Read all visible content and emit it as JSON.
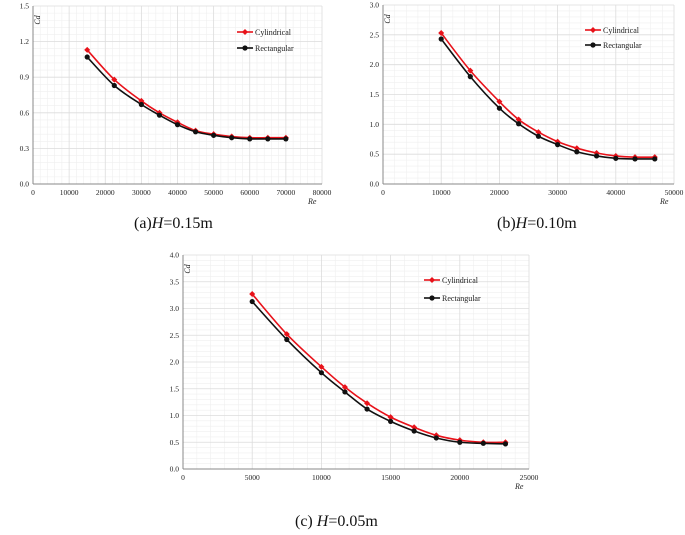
{
  "colors": {
    "cylindrical": "#e8121a",
    "rectangular": "#111111",
    "grid": "#dcdcdc",
    "axis": "#888888"
  },
  "chart_data": [
    {
      "type": "line",
      "id": "a",
      "caption_prefix": "(a)",
      "caption_var": "H",
      "caption_value": "=0.15m",
      "xlabel": "Re",
      "ylabel": "Cd",
      "xlim": [
        0,
        80000
      ],
      "ylim": [
        0,
        1.5
      ],
      "xticks": [
        0,
        10000,
        20000,
        30000,
        40000,
        50000,
        60000,
        70000,
        80000
      ],
      "yticks": [
        0.0,
        0.3,
        0.6,
        0.9,
        1.2,
        1.5
      ],
      "ydecimals": 1,
      "x": [
        15000,
        22500,
        30000,
        35000,
        40000,
        45000,
        50000,
        55000,
        60000,
        65000,
        70000
      ],
      "series": [
        {
          "name": "Cylindrical",
          "values": [
            1.13,
            0.88,
            0.7,
            0.6,
            0.52,
            0.45,
            0.42,
            0.4,
            0.39,
            0.39,
            0.39
          ]
        },
        {
          "name": "Rectangular",
          "values": [
            1.07,
            0.83,
            0.67,
            0.58,
            0.5,
            0.44,
            0.41,
            0.39,
            0.38,
            0.38,
            0.38
          ]
        }
      ]
    },
    {
      "type": "line",
      "id": "b",
      "caption_prefix": "(b)",
      "caption_var": "H",
      "caption_value": "=0.10m",
      "xlabel": "Re",
      "ylabel": "Cd",
      "xlim": [
        0,
        50000
      ],
      "ylim": [
        0,
        3.0
      ],
      "xticks": [
        0,
        10000,
        20000,
        30000,
        40000,
        50000
      ],
      "yticks": [
        0.0,
        0.5,
        1.0,
        1.5,
        2.0,
        2.5,
        3.0
      ],
      "ydecimals": 1,
      "x": [
        10000,
        15000,
        20000,
        23300,
        26700,
        30000,
        33300,
        36700,
        40000,
        43300,
        46700
      ],
      "series": [
        {
          "name": "Cylindrical",
          "values": [
            2.53,
            1.9,
            1.38,
            1.08,
            0.87,
            0.71,
            0.6,
            0.52,
            0.47,
            0.45,
            0.45
          ]
        },
        {
          "name": "Rectangular",
          "values": [
            2.43,
            1.8,
            1.27,
            1.01,
            0.8,
            0.66,
            0.54,
            0.47,
            0.43,
            0.42,
            0.42
          ]
        }
      ]
    },
    {
      "type": "line",
      "id": "c",
      "caption_prefix": "(c) ",
      "caption_var": "H",
      "caption_value": "=0.05m",
      "xlabel": "Re",
      "ylabel": "Cd",
      "xlim": [
        0,
        25000
      ],
      "ylim": [
        0,
        4.0
      ],
      "xticks": [
        0,
        5000,
        10000,
        15000,
        20000,
        25000
      ],
      "yticks": [
        0.0,
        0.5,
        1.0,
        1.5,
        2.0,
        2.5,
        3.0,
        3.5,
        4.0
      ],
      "ydecimals": 1,
      "x": [
        5000,
        7500,
        10000,
        11700,
        13300,
        15000,
        16700,
        18300,
        20000,
        21700,
        23300
      ],
      "series": [
        {
          "name": "Cylindrical",
          "values": [
            3.27,
            2.52,
            1.91,
            1.53,
            1.23,
            0.97,
            0.78,
            0.63,
            0.54,
            0.5,
            0.5
          ]
        },
        {
          "name": "Rectangular",
          "values": [
            3.13,
            2.42,
            1.8,
            1.44,
            1.12,
            0.89,
            0.71,
            0.58,
            0.5,
            0.48,
            0.47
          ]
        }
      ]
    }
  ]
}
